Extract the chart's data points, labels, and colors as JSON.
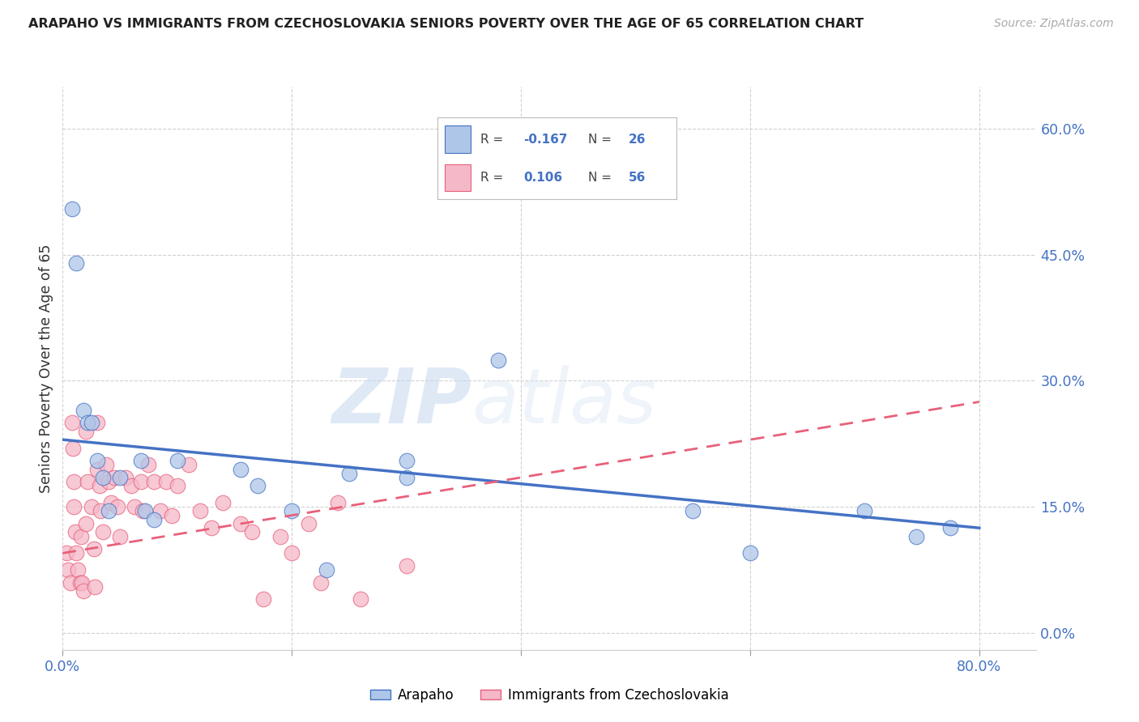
{
  "title": "ARAPAHO VS IMMIGRANTS FROM CZECHOSLOVAKIA SENIORS POVERTY OVER THE AGE OF 65 CORRELATION CHART",
  "source": "Source: ZipAtlas.com",
  "ylabel": "Seniors Poverty Over the Age of 65",
  "xlim": [
    0.0,
    0.85
  ],
  "ylim": [
    -0.02,
    0.65
  ],
  "yticks": [
    0.0,
    0.15,
    0.3,
    0.45,
    0.6
  ],
  "ytick_labels": [
    "0.0%",
    "15.0%",
    "30.0%",
    "45.0%",
    "60.0%"
  ],
  "xticks": [
    0.0,
    0.2,
    0.4,
    0.6,
    0.8
  ],
  "xtick_labels": [
    "0.0%",
    "",
    "",
    "",
    "80.0%"
  ],
  "arapaho_R": -0.167,
  "arapaho_N": 26,
  "immigrants_R": 0.106,
  "immigrants_N": 56,
  "arapaho_color": "#aec6e8",
  "immigrants_color": "#f5b8c8",
  "arapaho_line_color": "#4472c4",
  "immigrants_line_color": "#e8607a",
  "watermark_zip": "ZIP",
  "watermark_atlas": "atlas",
  "arapaho_x": [
    0.008,
    0.012,
    0.018,
    0.022,
    0.025,
    0.03,
    0.035,
    0.04,
    0.05,
    0.068,
    0.072,
    0.08,
    0.1,
    0.155,
    0.17,
    0.2,
    0.23,
    0.25,
    0.3,
    0.3,
    0.38,
    0.55,
    0.6,
    0.7,
    0.745,
    0.775
  ],
  "arapaho_y": [
    0.505,
    0.44,
    0.265,
    0.25,
    0.25,
    0.205,
    0.185,
    0.145,
    0.185,
    0.205,
    0.145,
    0.135,
    0.205,
    0.195,
    0.175,
    0.145,
    0.075,
    0.19,
    0.185,
    0.205,
    0.325,
    0.145,
    0.095,
    0.145,
    0.115,
    0.125
  ],
  "immigrants_x": [
    0.003,
    0.005,
    0.007,
    0.008,
    0.009,
    0.01,
    0.01,
    0.011,
    0.012,
    0.013,
    0.015,
    0.016,
    0.017,
    0.018,
    0.02,
    0.02,
    0.022,
    0.025,
    0.027,
    0.028,
    0.03,
    0.03,
    0.032,
    0.033,
    0.035,
    0.038,
    0.04,
    0.042,
    0.045,
    0.048,
    0.05,
    0.055,
    0.06,
    0.063,
    0.068,
    0.07,
    0.075,
    0.08,
    0.085,
    0.09,
    0.095,
    0.1,
    0.11,
    0.12,
    0.13,
    0.14,
    0.155,
    0.165,
    0.175,
    0.19,
    0.2,
    0.215,
    0.225,
    0.24,
    0.26,
    0.3
  ],
  "immigrants_y": [
    0.095,
    0.075,
    0.06,
    0.25,
    0.22,
    0.18,
    0.15,
    0.12,
    0.095,
    0.075,
    0.06,
    0.115,
    0.06,
    0.05,
    0.24,
    0.13,
    0.18,
    0.15,
    0.1,
    0.055,
    0.25,
    0.195,
    0.175,
    0.145,
    0.12,
    0.2,
    0.18,
    0.155,
    0.185,
    0.15,
    0.115,
    0.185,
    0.175,
    0.15,
    0.18,
    0.145,
    0.2,
    0.18,
    0.145,
    0.18,
    0.14,
    0.175,
    0.2,
    0.145,
    0.125,
    0.155,
    0.13,
    0.12,
    0.04,
    0.115,
    0.095,
    0.13,
    0.06,
    0.155,
    0.04,
    0.08
  ],
  "arapaho_line_x": [
    0.0,
    0.8
  ],
  "arapaho_line_y": [
    0.23,
    0.125
  ],
  "immigrants_line_x": [
    0.0,
    0.8
  ],
  "immigrants_line_y": [
    0.095,
    0.275
  ]
}
